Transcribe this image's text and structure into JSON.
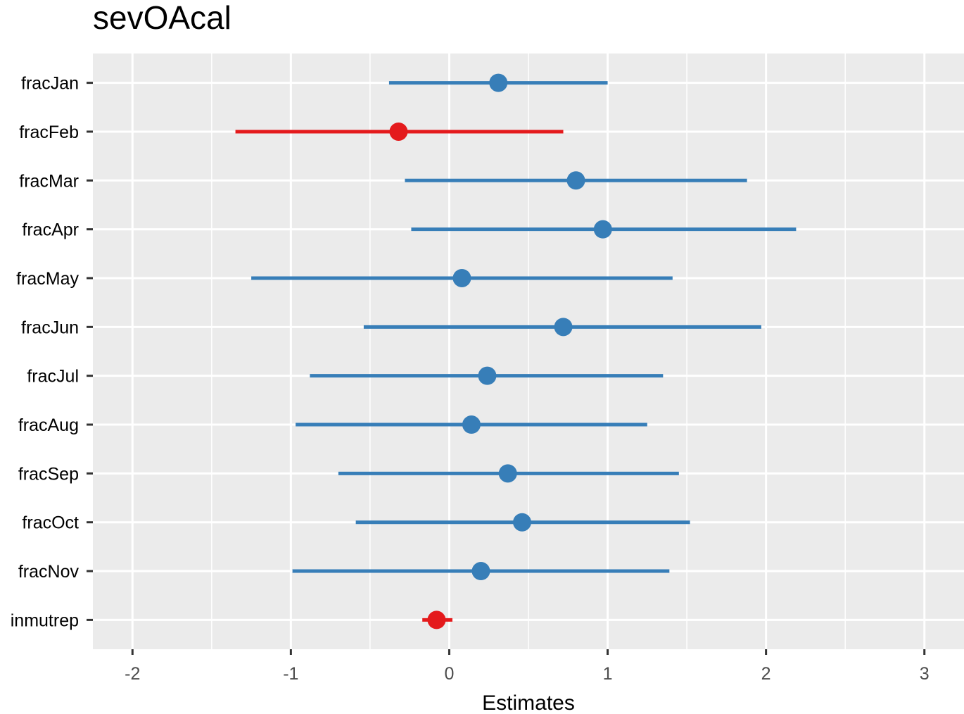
{
  "chart_data": {
    "type": "scatter",
    "subtype": "forest-plot",
    "title": "sevOAcal",
    "xlabel": "Estimates",
    "ylabel": "",
    "xlim": [
      -2.25,
      3.25
    ],
    "x_ticks": [
      -2,
      -1,
      0,
      1,
      2,
      3
    ],
    "x_tick_labels": [
      "-2",
      "-1",
      "0",
      "1",
      "2",
      "3"
    ],
    "grid": true,
    "legend": "none",
    "colors": {
      "positive": "#377EB8",
      "negative": "#E41A1C",
      "panel": "#EBEBEB",
      "grid": "#FFFFFF"
    },
    "terms": [
      {
        "label": "fracJan",
        "estimate": 0.31,
        "low": -0.38,
        "high": 1.0,
        "sign": "positive"
      },
      {
        "label": "fracFeb",
        "estimate": -0.32,
        "low": -1.35,
        "high": 0.72,
        "sign": "negative"
      },
      {
        "label": "fracMar",
        "estimate": 0.8,
        "low": -0.28,
        "high": 1.88,
        "sign": "positive"
      },
      {
        "label": "fracApr",
        "estimate": 0.97,
        "low": -0.24,
        "high": 2.19,
        "sign": "positive"
      },
      {
        "label": "fracMay",
        "estimate": 0.08,
        "low": -1.25,
        "high": 1.41,
        "sign": "positive"
      },
      {
        "label": "fracJun",
        "estimate": 0.72,
        "low": -0.54,
        "high": 1.97,
        "sign": "positive"
      },
      {
        "label": "fracJul",
        "estimate": 0.24,
        "low": -0.88,
        "high": 1.35,
        "sign": "positive"
      },
      {
        "label": "fracAug",
        "estimate": 0.14,
        "low": -0.97,
        "high": 1.25,
        "sign": "positive"
      },
      {
        "label": "fracSep",
        "estimate": 0.37,
        "low": -0.7,
        "high": 1.45,
        "sign": "positive"
      },
      {
        "label": "fracOct",
        "estimate": 0.46,
        "low": -0.59,
        "high": 1.52,
        "sign": "positive"
      },
      {
        "label": "fracNov",
        "estimate": 0.2,
        "low": -0.99,
        "high": 1.39,
        "sign": "positive"
      },
      {
        "label": "inmutrep",
        "estimate": -0.08,
        "low": -0.17,
        "high": 0.02,
        "sign": "negative"
      }
    ]
  }
}
